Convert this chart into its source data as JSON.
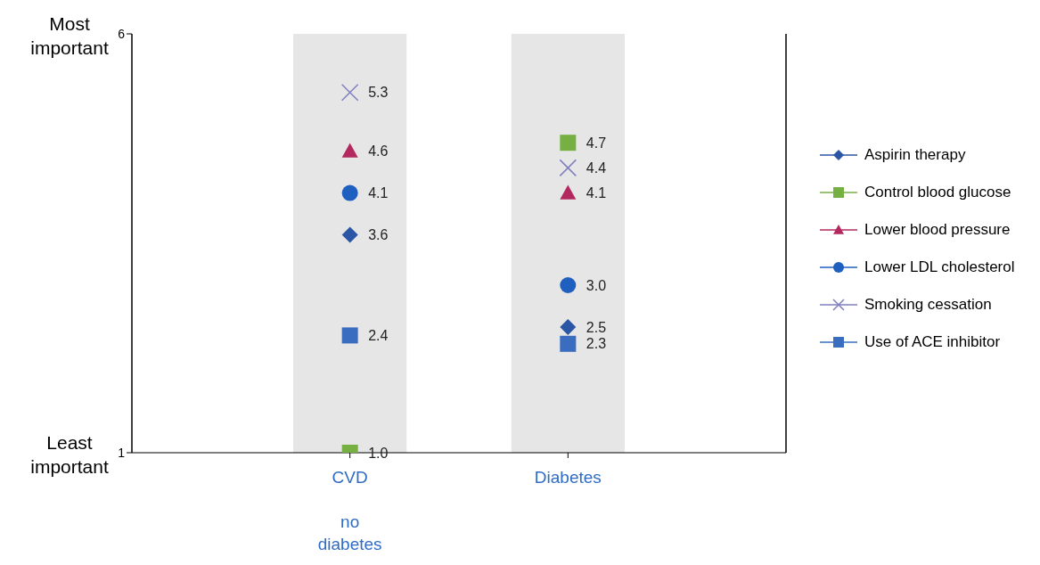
{
  "chart_data": {
    "type": "scatter",
    "categories": [
      "CVD\n\nno\ndiabetes",
      "Diabetes"
    ],
    "ylim": [
      1,
      6
    ],
    "yticks": [
      1,
      6
    ],
    "grid": "x",
    "legend": "right",
    "annotations": [
      "Most important",
      "Least important"
    ],
    "bands": [
      {
        "axis": "x",
        "from": "CVD\n\nno\ndiabetes",
        "to": "CVD\n\nno\ndiabetes",
        "color": "#e6e6e6"
      },
      {
        "axis": "x",
        "from": "Diabetes",
        "to": "Diabetes",
        "color": "#e6e6e6"
      }
    ],
    "series": [
      {
        "name": "Aspirin therapy",
        "color": "#2b55a5",
        "marker": "diamond",
        "values": [
          3.6,
          2.5
        ],
        "value_labels": [
          "3.6",
          "2.5"
        ]
      },
      {
        "name": "Control blood glucose",
        "color": "#76b043",
        "marker": "square",
        "values": [
          1.0,
          4.7
        ],
        "value_labels": [
          "1.0",
          "4.7"
        ]
      },
      {
        "name": "Lower blood pressure",
        "color": "#b3285e",
        "marker": "triangle",
        "values": [
          4.6,
          4.1
        ],
        "value_labels": [
          "4.6",
          "4.1"
        ]
      },
      {
        "name": "Lower LDL cholesterol",
        "color": "#1f5fc0",
        "marker": "circle",
        "values": [
          4.1,
          3.0
        ],
        "value_labels": [
          "4.1",
          "3.0"
        ]
      },
      {
        "name": "Smoking cessation",
        "color": "#7f7fbf",
        "marker": "cross",
        "values": [
          5.3,
          4.4
        ],
        "value_labels": [
          "5.3",
          "4.4"
        ]
      },
      {
        "name": "Use of ACE inhibitor",
        "color": "#3a6cc0",
        "marker": "square",
        "values": [
          2.4,
          2.3
        ],
        "value_labels": [
          "2.4",
          "2.3"
        ]
      }
    ]
  }
}
